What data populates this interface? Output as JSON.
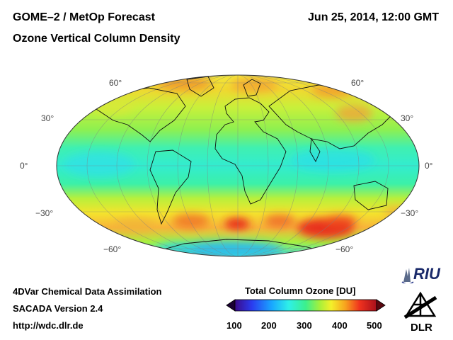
{
  "header": {
    "title": "GOME–2 / MetOp Forecast",
    "subtitle": "Ozone Vertical Column Density",
    "datetime": "Jun 25, 2014, 12:00 GMT"
  },
  "map": {
    "projection": "Hammer-Aitoff",
    "lat_labels_left": [
      "60°",
      "30°",
      "0°",
      "−30°",
      "−60°"
    ],
    "lat_labels_right": [
      "60°",
      "30°",
      "0°",
      "−30°",
      "−60°"
    ]
  },
  "footer": {
    "line1": "4DVar Chemical Data Assimilation",
    "line2": "SACADA Version 2.4",
    "line3": "http://wdc.dlr.de"
  },
  "colorbar": {
    "title": "Total Column Ozone [DU]",
    "ticks": [
      "100",
      "200",
      "300",
      "400",
      "500"
    ],
    "colors": [
      "#1a0033",
      "#3b0a8a",
      "#2a3cf0",
      "#19a7ff",
      "#2ef0e8",
      "#3cf08c",
      "#a8f03a",
      "#f4f02a",
      "#f7a21e",
      "#f0321e",
      "#c8141e",
      "#7a0a14"
    ]
  },
  "logos": {
    "riu": "RIU",
    "dlr": "DLR"
  }
}
